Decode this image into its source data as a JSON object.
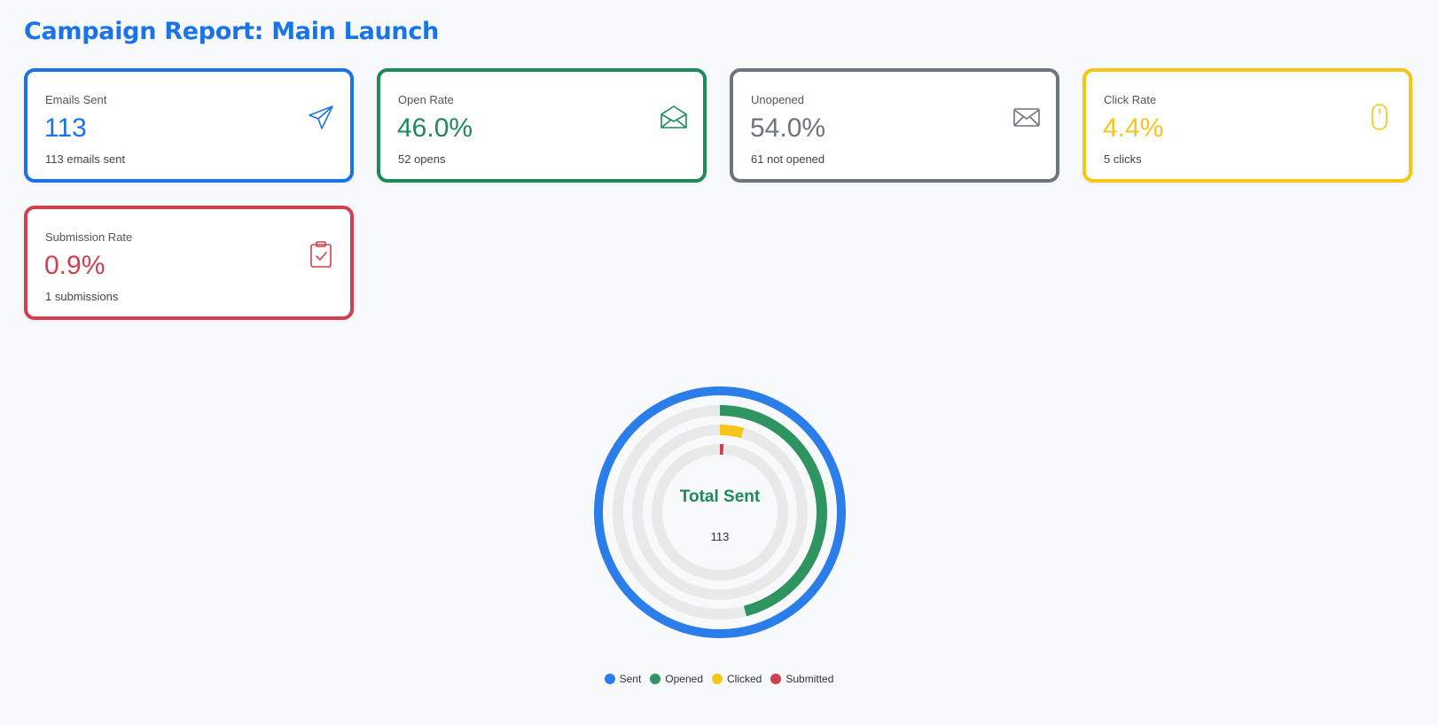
{
  "page": {
    "title": "Campaign Report: Main Launch"
  },
  "cards": [
    {
      "label": "Emails Sent",
      "value": "113",
      "sub": "113 emails sent",
      "color": "#1a73e8",
      "icon": "send-icon"
    },
    {
      "label": "Open Rate",
      "value": "46.0%",
      "sub": "52 opens",
      "color": "#1e8a57",
      "icon": "open-envelope-icon"
    },
    {
      "label": "Unopened",
      "value": "54.0%",
      "sub": "61 not opened",
      "color": "#6c757d",
      "icon": "envelope-icon"
    },
    {
      "label": "Click Rate",
      "value": "4.4%",
      "sub": "5 clicks",
      "color": "#f5c518",
      "icon": "mouse-icon"
    },
    {
      "label": "Submission Rate",
      "value": "0.9%",
      "sub": "1 submissions",
      "color": "#d0404f",
      "icon": "clipboard-check-icon"
    }
  ],
  "chart_data": {
    "type": "radial-bar",
    "center_title": "Total Sent",
    "center_value": "113",
    "total": 113,
    "series": [
      {
        "name": "Sent",
        "value": 113,
        "color": "#2b7de9"
      },
      {
        "name": "Opened",
        "value": 52,
        "color": "#2e9460"
      },
      {
        "name": "Clicked",
        "value": 5,
        "color": "#f5c518"
      },
      {
        "name": "Submitted",
        "value": 1,
        "color": "#d0404f"
      }
    ],
    "track_color": "#e9e9e9",
    "legend_position": "bottom"
  }
}
